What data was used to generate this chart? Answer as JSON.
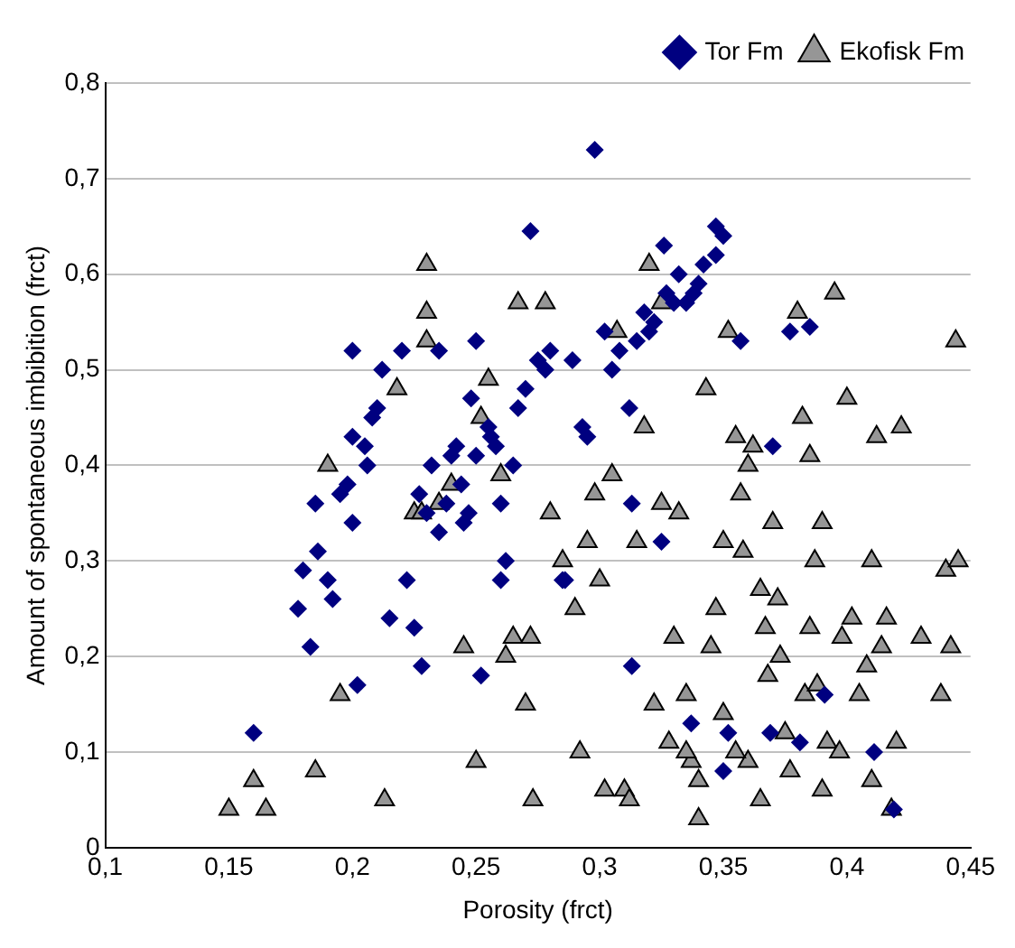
{
  "chart_data": {
    "type": "scatter",
    "xlabel": "Porosity (frct)",
    "ylabel": "Amount of spontaneous imbibition (frct)",
    "xlim": [
      0.1,
      0.45
    ],
    "xticks": [
      {
        "value": 0.1,
        "label": "0,1"
      },
      {
        "value": 0.15,
        "label": "0,15"
      },
      {
        "value": 0.2,
        "label": "0,2"
      },
      {
        "value": 0.25,
        "label": "0,25"
      },
      {
        "value": 0.3,
        "label": "0,3"
      },
      {
        "value": 0.35,
        "label": "0,35"
      },
      {
        "value": 0.4,
        "label": "0,4"
      },
      {
        "value": 0.45,
        "label": "0,45"
      }
    ],
    "ylim": [
      0,
      0.8
    ],
    "yticks": [
      0,
      {
        "value": 0.1,
        "label": "0,1"
      },
      {
        "value": 0.2,
        "label": "0,2"
      },
      {
        "value": 0.3,
        "label": "0,3"
      },
      {
        "value": 0.4,
        "label": "0,4"
      },
      {
        "value": 0.5,
        "label": "0,5"
      },
      {
        "value": 0.6,
        "label": "0,6"
      },
      {
        "value": 0.7,
        "label": "0,7"
      },
      {
        "value": 0.8,
        "label": "0,8"
      }
    ],
    "grid": "y",
    "legend": "top right",
    "series": [
      {
        "name": "Tor Fm",
        "color": "#000080",
        "marker": "diamond",
        "x": [
          0.16,
          0.178,
          0.18,
          0.183,
          0.185,
          0.186,
          0.19,
          0.192,
          0.195,
          0.198,
          0.2,
          0.2,
          0.2,
          0.202,
          0.205,
          0.206,
          0.208,
          0.21,
          0.212,
          0.215,
          0.22,
          0.222,
          0.225,
          0.227,
          0.228,
          0.23,
          0.232,
          0.235,
          0.235,
          0.238,
          0.24,
          0.242,
          0.244,
          0.245,
          0.247,
          0.248,
          0.25,
          0.25,
          0.252,
          0.255,
          0.256,
          0.258,
          0.26,
          0.26,
          0.262,
          0.265,
          0.267,
          0.27,
          0.272,
          0.275,
          0.278,
          0.28,
          0.285,
          0.289,
          0.293,
          0.298,
          0.302,
          0.305,
          0.308,
          0.312,
          0.315,
          0.318,
          0.32,
          0.322,
          0.326,
          0.327,
          0.33,
          0.332,
          0.335,
          0.338,
          0.34,
          0.342,
          0.347,
          0.347,
          0.35,
          0.357,
          0.377,
          0.385,
          0.37,
          0.295,
          0.313,
          0.325,
          0.286,
          0.313,
          0.337,
          0.352,
          0.35,
          0.369,
          0.381,
          0.391,
          0.411,
          0.419
        ],
        "values": [
          0.12,
          0.25,
          0.29,
          0.21,
          0.36,
          0.31,
          0.28,
          0.26,
          0.37,
          0.38,
          0.34,
          0.43,
          0.52,
          0.17,
          0.42,
          0.4,
          0.45,
          0.46,
          0.5,
          0.24,
          0.52,
          0.28,
          0.23,
          0.37,
          0.19,
          0.35,
          0.4,
          0.52,
          0.33,
          0.36,
          0.41,
          0.42,
          0.38,
          0.34,
          0.35,
          0.47,
          0.41,
          0.53,
          0.18,
          0.44,
          0.43,
          0.42,
          0.36,
          0.28,
          0.3,
          0.4,
          0.46,
          0.48,
          0.645,
          0.51,
          0.5,
          0.52,
          0.28,
          0.51,
          0.44,
          0.73,
          0.54,
          0.5,
          0.52,
          0.46,
          0.53,
          0.56,
          0.54,
          0.55,
          0.63,
          0.58,
          0.57,
          0.6,
          0.57,
          0.58,
          0.59,
          0.61,
          0.65,
          0.62,
          0.64,
          0.53,
          0.54,
          0.545,
          0.42,
          0.43,
          0.36,
          0.32,
          0.28,
          0.19,
          0.13,
          0.12,
          0.08,
          0.12,
          0.11,
          0.16,
          0.1,
          0.04
        ]
      },
      {
        "name": "Ekofisk Fm",
        "color": "#969696",
        "marker": "triangle",
        "x": [
          0.15,
          0.16,
          0.165,
          0.185,
          0.19,
          0.195,
          0.213,
          0.218,
          0.225,
          0.228,
          0.23,
          0.23,
          0.23,
          0.235,
          0.24,
          0.245,
          0.25,
          0.252,
          0.255,
          0.26,
          0.262,
          0.265,
          0.267,
          0.27,
          0.272,
          0.273,
          0.278,
          0.28,
          0.285,
          0.29,
          0.292,
          0.295,
          0.298,
          0.3,
          0.302,
          0.305,
          0.307,
          0.31,
          0.312,
          0.315,
          0.318,
          0.32,
          0.322,
          0.325,
          0.325,
          0.328,
          0.33,
          0.332,
          0.335,
          0.337,
          0.34,
          0.343,
          0.345,
          0.347,
          0.35,
          0.35,
          0.352,
          0.355,
          0.357,
          0.358,
          0.36,
          0.362,
          0.365,
          0.367,
          0.368,
          0.37,
          0.372,
          0.373,
          0.375,
          0.377,
          0.38,
          0.382,
          0.383,
          0.385,
          0.387,
          0.388,
          0.39,
          0.392,
          0.395,
          0.397,
          0.4,
          0.402,
          0.405,
          0.408,
          0.41,
          0.412,
          0.414,
          0.416,
          0.418,
          0.42,
          0.422,
          0.43,
          0.438,
          0.44,
          0.442,
          0.444,
          0.445,
          0.36,
          0.365,
          0.355,
          0.385,
          0.39,
          0.41,
          0.398,
          0.34,
          0.335
        ],
        "values": [
          0.04,
          0.07,
          0.04,
          0.08,
          0.4,
          0.16,
          0.05,
          0.48,
          0.35,
          0.35,
          0.61,
          0.56,
          0.53,
          0.36,
          0.38,
          0.21,
          0.09,
          0.45,
          0.49,
          0.39,
          0.2,
          0.22,
          0.57,
          0.15,
          0.22,
          0.05,
          0.57,
          0.35,
          0.3,
          0.25,
          0.1,
          0.32,
          0.37,
          0.28,
          0.06,
          0.39,
          0.54,
          0.06,
          0.05,
          0.32,
          0.44,
          0.61,
          0.15,
          0.57,
          0.36,
          0.11,
          0.22,
          0.35,
          0.16,
          0.09,
          0.03,
          0.48,
          0.21,
          0.25,
          0.32,
          0.14,
          0.54,
          0.43,
          0.37,
          0.31,
          0.4,
          0.42,
          0.27,
          0.23,
          0.18,
          0.34,
          0.26,
          0.2,
          0.12,
          0.08,
          0.56,
          0.45,
          0.16,
          0.41,
          0.3,
          0.17,
          0.06,
          0.11,
          0.58,
          0.1,
          0.47,
          0.24,
          0.16,
          0.19,
          0.3,
          0.43,
          0.21,
          0.24,
          0.04,
          0.11,
          0.44,
          0.22,
          0.16,
          0.29,
          0.21,
          0.53,
          0.3,
          0.09,
          0.05,
          0.1,
          0.23,
          0.34,
          0.07,
          0.22,
          0.07,
          0.1
        ]
      }
    ]
  }
}
